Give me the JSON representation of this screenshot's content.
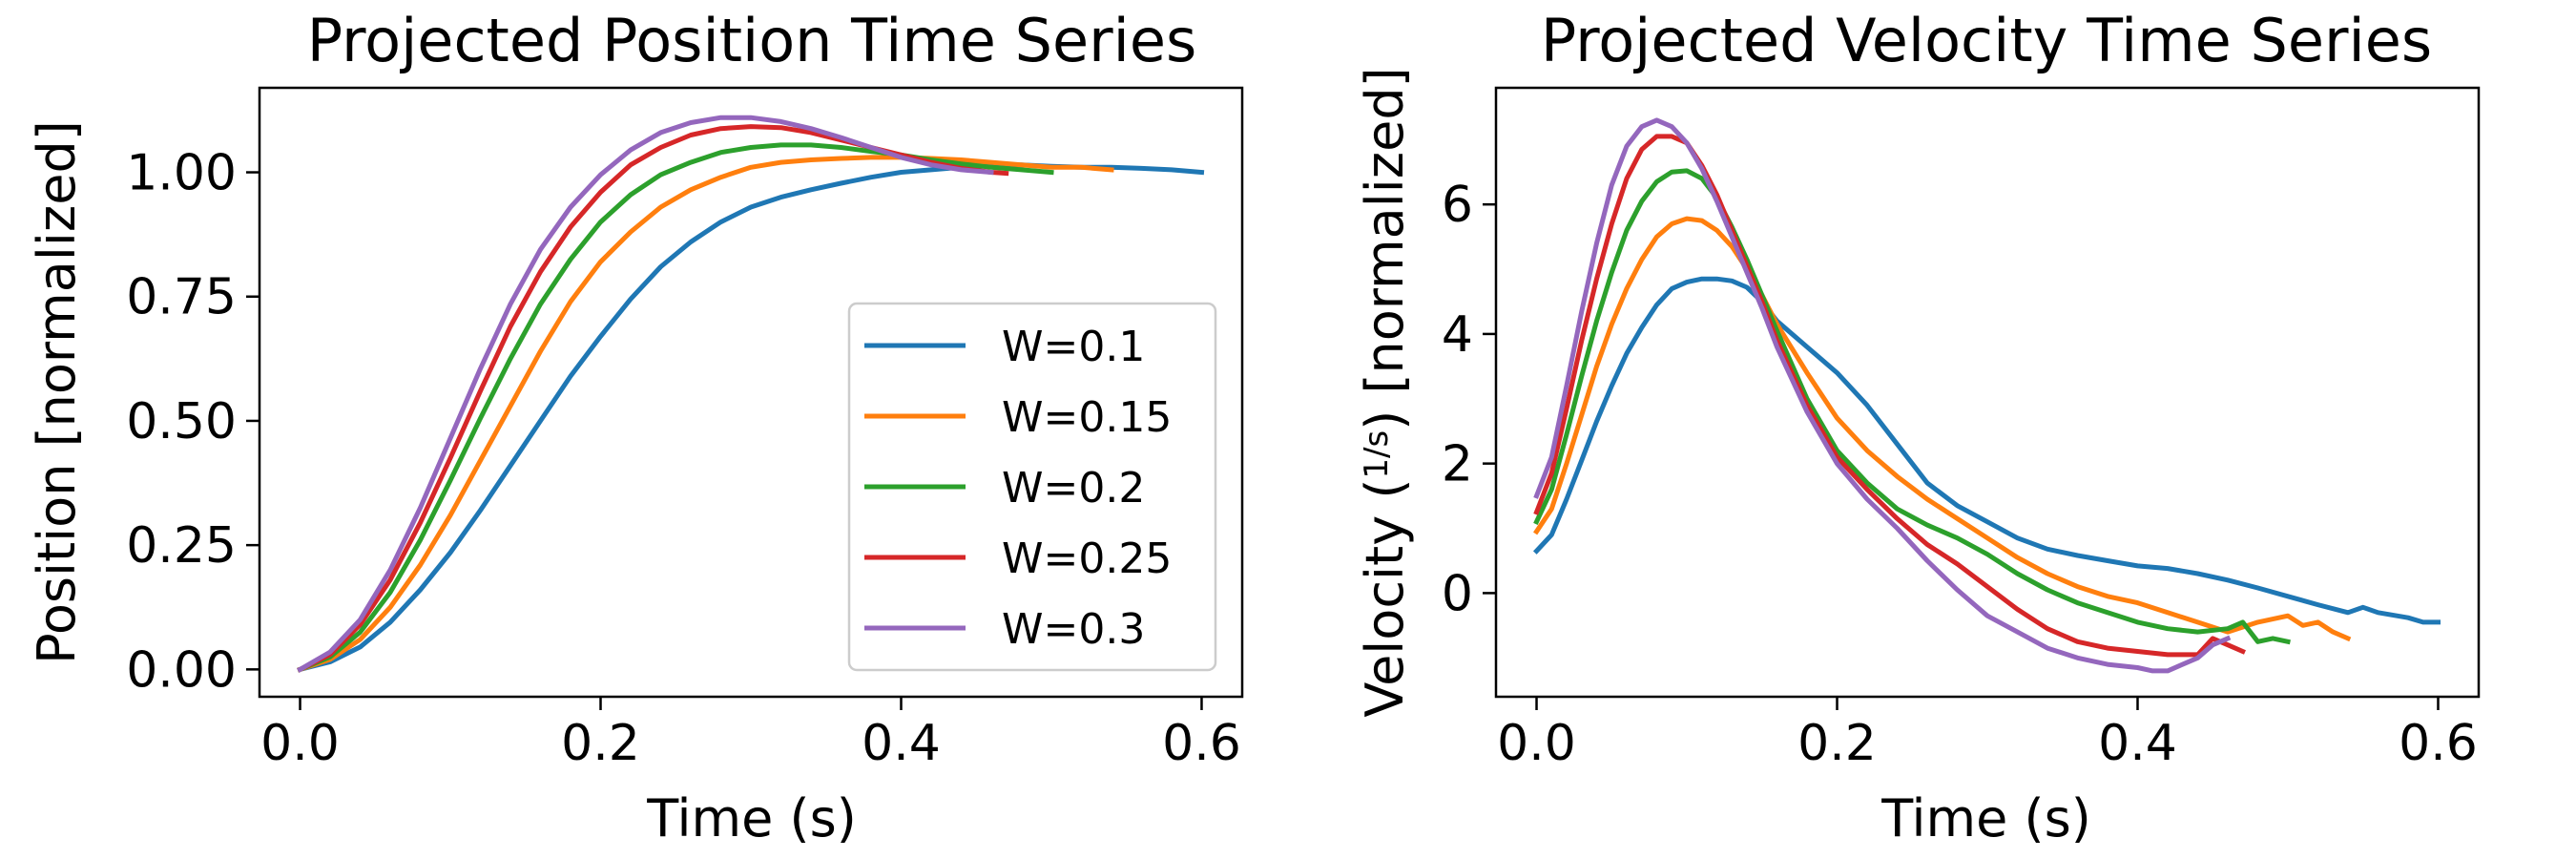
{
  "colors": {
    "W=0.1": "#1f77b4",
    "W=0.15": "#ff7f0e",
    "W=0.2": "#2ca02c",
    "W=0.25": "#d62728",
    "W=0.3": "#9467bd"
  },
  "chart_data": [
    {
      "type": "line",
      "title": "Projected Position Time Series",
      "xlabel": "Time (s)",
      "ylabel": "Position [normalized]",
      "xlim": [
        -0.027,
        0.627
      ],
      "ylim": [
        -0.055,
        1.17
      ],
      "xticks": [
        0.0,
        0.2,
        0.4,
        0.6
      ],
      "xtick_labels": [
        "0.0",
        "0.2",
        "0.4",
        "0.6"
      ],
      "yticks": [
        0.0,
        0.25,
        0.5,
        0.75,
        1.0
      ],
      "ytick_labels": [
        "0.00",
        "0.25",
        "0.50",
        "0.75",
        "1.00"
      ],
      "grid": false,
      "legend": "lower-right",
      "series": [
        {
          "name": "W=0.1",
          "x": [
            0.0,
            0.02,
            0.04,
            0.06,
            0.08,
            0.1,
            0.12,
            0.14,
            0.16,
            0.18,
            0.2,
            0.22,
            0.24,
            0.26,
            0.28,
            0.3,
            0.32,
            0.34,
            0.36,
            0.38,
            0.4,
            0.42,
            0.44,
            0.46,
            0.48,
            0.5,
            0.52,
            0.54,
            0.56,
            0.58,
            0.6
          ],
          "y": [
            0.0,
            0.015,
            0.045,
            0.095,
            0.16,
            0.235,
            0.32,
            0.41,
            0.5,
            0.59,
            0.67,
            0.745,
            0.81,
            0.86,
            0.9,
            0.93,
            0.95,
            0.965,
            0.978,
            0.99,
            1.0,
            1.005,
            1.01,
            1.013,
            1.015,
            1.012,
            1.01,
            1.01,
            1.008,
            1.005,
            1.0
          ]
        },
        {
          "name": "W=0.15",
          "x": [
            0.0,
            0.02,
            0.04,
            0.06,
            0.08,
            0.1,
            0.12,
            0.14,
            0.16,
            0.18,
            0.2,
            0.22,
            0.24,
            0.26,
            0.28,
            0.3,
            0.32,
            0.34,
            0.36,
            0.38,
            0.4,
            0.42,
            0.44,
            0.46,
            0.48,
            0.5,
            0.52,
            0.54
          ],
          "y": [
            0.0,
            0.02,
            0.06,
            0.125,
            0.21,
            0.31,
            0.42,
            0.53,
            0.64,
            0.74,
            0.82,
            0.88,
            0.93,
            0.965,
            0.99,
            1.01,
            1.02,
            1.025,
            1.028,
            1.03,
            1.03,
            1.028,
            1.025,
            1.02,
            1.015,
            1.01,
            1.01,
            1.005
          ]
        },
        {
          "name": "W=0.2",
          "x": [
            0.0,
            0.02,
            0.04,
            0.06,
            0.08,
            0.1,
            0.12,
            0.14,
            0.16,
            0.18,
            0.2,
            0.22,
            0.24,
            0.26,
            0.28,
            0.3,
            0.32,
            0.34,
            0.36,
            0.38,
            0.4,
            0.42,
            0.44,
            0.46,
            0.48,
            0.5
          ],
          "y": [
            0.0,
            0.025,
            0.075,
            0.155,
            0.26,
            0.38,
            0.505,
            0.625,
            0.735,
            0.825,
            0.9,
            0.955,
            0.995,
            1.02,
            1.04,
            1.05,
            1.055,
            1.055,
            1.05,
            1.042,
            1.035,
            1.025,
            1.017,
            1.01,
            1.005,
            1.0
          ]
        },
        {
          "name": "W=0.25",
          "x": [
            0.0,
            0.02,
            0.04,
            0.06,
            0.08,
            0.1,
            0.12,
            0.14,
            0.16,
            0.18,
            0.2,
            0.22,
            0.24,
            0.26,
            0.28,
            0.3,
            0.32,
            0.34,
            0.36,
            0.38,
            0.4,
            0.42,
            0.44,
            0.46,
            0.47
          ],
          "y": [
            0.0,
            0.03,
            0.09,
            0.18,
            0.295,
            0.425,
            0.56,
            0.69,
            0.8,
            0.89,
            0.96,
            1.015,
            1.05,
            1.075,
            1.088,
            1.092,
            1.09,
            1.08,
            1.065,
            1.05,
            1.035,
            1.02,
            1.008,
            1.0,
            0.998
          ]
        },
        {
          "name": "W=0.3",
          "x": [
            0.0,
            0.02,
            0.04,
            0.06,
            0.08,
            0.1,
            0.12,
            0.14,
            0.16,
            0.18,
            0.2,
            0.22,
            0.24,
            0.26,
            0.28,
            0.3,
            0.32,
            0.34,
            0.36,
            0.38,
            0.4,
            0.42,
            0.44,
            0.46
          ],
          "y": [
            0.0,
            0.035,
            0.1,
            0.2,
            0.325,
            0.465,
            0.605,
            0.735,
            0.845,
            0.93,
            0.995,
            1.045,
            1.08,
            1.1,
            1.11,
            1.11,
            1.102,
            1.088,
            1.07,
            1.05,
            1.03,
            1.015,
            1.005,
            1.0
          ]
        }
      ]
    },
    {
      "type": "line",
      "title": "Projected Velocity Time Series",
      "xlabel": "Time (s)",
      "ylabel": "Velocity (1/s) [normalized]",
      "xlim": [
        -0.027,
        0.627
      ],
      "ylim": [
        -1.6,
        7.8
      ],
      "xticks": [
        0.0,
        0.2,
        0.4,
        0.6
      ],
      "xtick_labels": [
        "0.0",
        "0.2",
        "0.4",
        "0.6"
      ],
      "yticks": [
        0,
        2,
        4,
        6
      ],
      "ytick_labels": [
        "0",
        "2",
        "4",
        "6"
      ],
      "grid": false,
      "series": [
        {
          "name": "W=0.1",
          "x": [
            0.0,
            0.01,
            0.02,
            0.03,
            0.04,
            0.05,
            0.06,
            0.07,
            0.08,
            0.09,
            0.1,
            0.11,
            0.12,
            0.13,
            0.14,
            0.15,
            0.16,
            0.18,
            0.2,
            0.22,
            0.24,
            0.26,
            0.28,
            0.3,
            0.32,
            0.34,
            0.36,
            0.38,
            0.4,
            0.42,
            0.44,
            0.46,
            0.48,
            0.5,
            0.52,
            0.54,
            0.55,
            0.56,
            0.58,
            0.59,
            0.6
          ],
          "y": [
            0.65,
            0.9,
            1.45,
            2.05,
            2.65,
            3.2,
            3.7,
            4.1,
            4.45,
            4.7,
            4.8,
            4.85,
            4.85,
            4.82,
            4.72,
            4.5,
            4.2,
            3.8,
            3.4,
            2.9,
            2.3,
            1.7,
            1.35,
            1.1,
            0.85,
            0.68,
            0.58,
            0.5,
            0.42,
            0.38,
            0.3,
            0.2,
            0.08,
            -0.05,
            -0.18,
            -0.3,
            -0.22,
            -0.3,
            -0.38,
            -0.45,
            -0.45
          ]
        },
        {
          "name": "W=0.15",
          "x": [
            0.0,
            0.01,
            0.02,
            0.03,
            0.04,
            0.05,
            0.06,
            0.07,
            0.08,
            0.09,
            0.1,
            0.11,
            0.12,
            0.13,
            0.14,
            0.15,
            0.16,
            0.18,
            0.2,
            0.22,
            0.24,
            0.26,
            0.28,
            0.3,
            0.32,
            0.34,
            0.36,
            0.38,
            0.4,
            0.42,
            0.44,
            0.46,
            0.48,
            0.5,
            0.51,
            0.52,
            0.53,
            0.54
          ],
          "y": [
            0.95,
            1.3,
            2.0,
            2.75,
            3.5,
            4.15,
            4.7,
            5.15,
            5.5,
            5.7,
            5.78,
            5.75,
            5.6,
            5.35,
            5.0,
            4.6,
            4.15,
            3.4,
            2.7,
            2.2,
            1.8,
            1.45,
            1.15,
            0.85,
            0.55,
            0.3,
            0.1,
            -0.05,
            -0.15,
            -0.3,
            -0.45,
            -0.6,
            -0.45,
            -0.35,
            -0.5,
            -0.45,
            -0.6,
            -0.7
          ]
        },
        {
          "name": "W=0.2",
          "x": [
            0.0,
            0.01,
            0.02,
            0.03,
            0.04,
            0.05,
            0.06,
            0.07,
            0.08,
            0.09,
            0.1,
            0.11,
            0.12,
            0.13,
            0.14,
            0.15,
            0.16,
            0.18,
            0.2,
            0.22,
            0.24,
            0.26,
            0.28,
            0.3,
            0.32,
            0.34,
            0.36,
            0.38,
            0.4,
            0.42,
            0.44,
            0.46,
            0.47,
            0.48,
            0.49,
            0.5
          ],
          "y": [
            1.1,
            1.6,
            2.45,
            3.35,
            4.2,
            4.95,
            5.6,
            6.05,
            6.35,
            6.5,
            6.52,
            6.4,
            6.1,
            5.65,
            5.15,
            4.6,
            4.05,
            3.0,
            2.2,
            1.7,
            1.3,
            1.05,
            0.85,
            0.6,
            0.3,
            0.05,
            -0.15,
            -0.3,
            -0.45,
            -0.55,
            -0.6,
            -0.55,
            -0.45,
            -0.75,
            -0.7,
            -0.75
          ]
        },
        {
          "name": "W=0.25",
          "x": [
            0.0,
            0.01,
            0.02,
            0.03,
            0.04,
            0.05,
            0.06,
            0.07,
            0.08,
            0.09,
            0.1,
            0.11,
            0.12,
            0.13,
            0.14,
            0.15,
            0.16,
            0.18,
            0.2,
            0.22,
            0.24,
            0.26,
            0.28,
            0.3,
            0.32,
            0.34,
            0.36,
            0.38,
            0.4,
            0.42,
            0.44,
            0.45,
            0.46,
            0.47
          ],
          "y": [
            1.25,
            1.85,
            2.85,
            3.9,
            4.85,
            5.7,
            6.4,
            6.85,
            7.05,
            7.05,
            6.95,
            6.6,
            6.15,
            5.6,
            5.05,
            4.5,
            3.9,
            2.9,
            2.1,
            1.6,
            1.15,
            0.75,
            0.45,
            0.1,
            -0.25,
            -0.55,
            -0.75,
            -0.85,
            -0.9,
            -0.95,
            -0.95,
            -0.7,
            -0.8,
            -0.9
          ]
        },
        {
          "name": "W=0.3",
          "x": [
            0.0,
            0.01,
            0.02,
            0.03,
            0.04,
            0.05,
            0.06,
            0.07,
            0.08,
            0.09,
            0.1,
            0.11,
            0.12,
            0.13,
            0.14,
            0.15,
            0.16,
            0.18,
            0.2,
            0.22,
            0.24,
            0.26,
            0.28,
            0.3,
            0.32,
            0.34,
            0.36,
            0.38,
            0.4,
            0.41,
            0.42,
            0.43,
            0.44,
            0.45,
            0.46
          ],
          "y": [
            1.5,
            2.1,
            3.2,
            4.35,
            5.4,
            6.3,
            6.9,
            7.2,
            7.3,
            7.2,
            6.95,
            6.55,
            6.05,
            5.5,
            4.95,
            4.4,
            3.8,
            2.8,
            2.0,
            1.45,
            1.0,
            0.5,
            0.05,
            -0.35,
            -0.6,
            -0.85,
            -1.0,
            -1.1,
            -1.15,
            -1.2,
            -1.2,
            -1.1,
            -1.0,
            -0.8,
            -0.7
          ]
        }
      ]
    }
  ]
}
